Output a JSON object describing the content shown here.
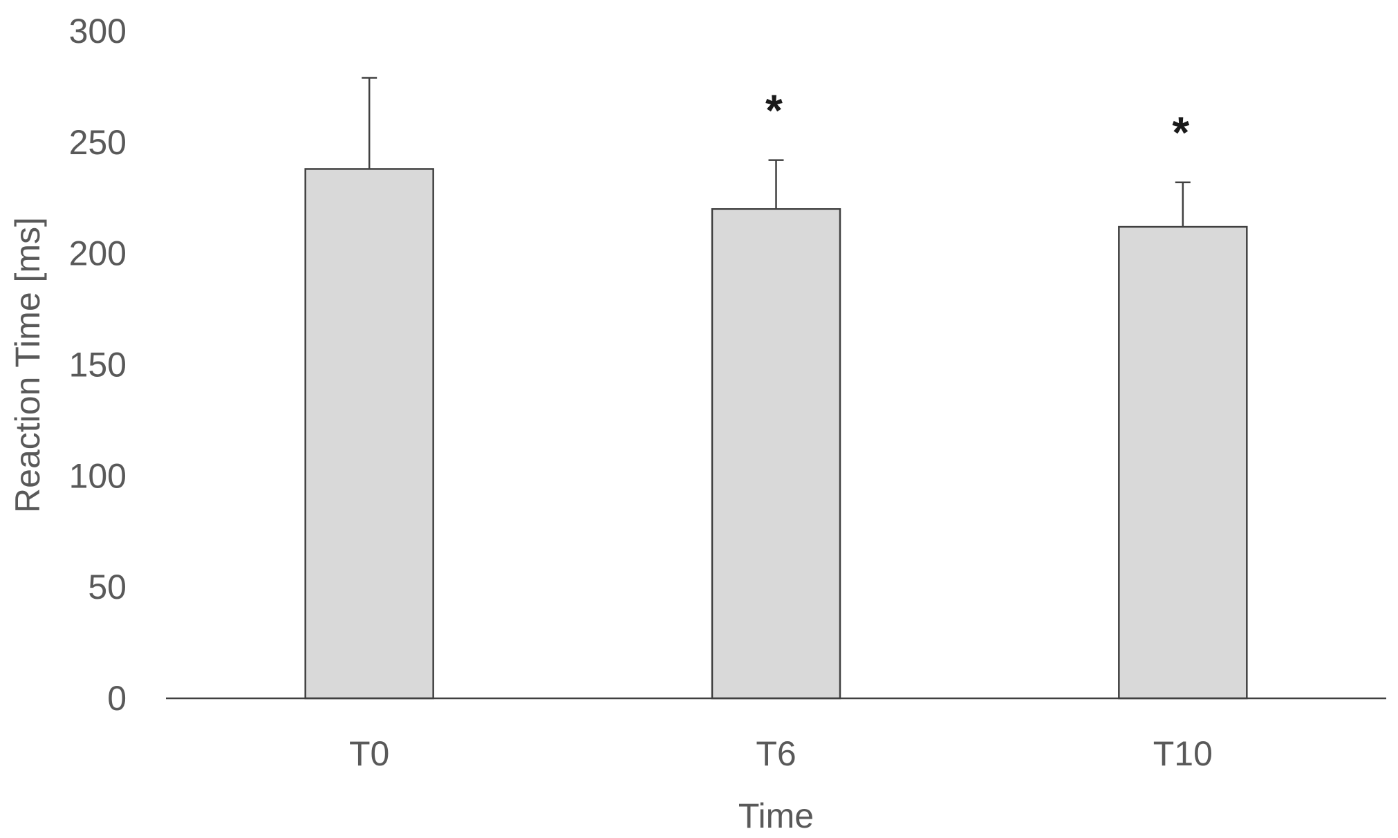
{
  "chart_data": {
    "type": "bar",
    "title": "",
    "xlabel": "Time",
    "ylabel": "Reaction Time [ms]",
    "categories": [
      "T0",
      "T6",
      "T10"
    ],
    "values": [
      238,
      220,
      212
    ],
    "error_upper": [
      279,
      242,
      232
    ],
    "annotations": [
      "",
      "*",
      "*"
    ],
    "ylim": [
      0,
      300
    ],
    "yticks": [
      0,
      50,
      100,
      150,
      200,
      250,
      300
    ],
    "grid": false,
    "legend": "none",
    "colors": {
      "bar_fill": "#d9d9d9",
      "bar_stroke": "#404040",
      "axis": "#404040",
      "text": "#595959"
    }
  }
}
